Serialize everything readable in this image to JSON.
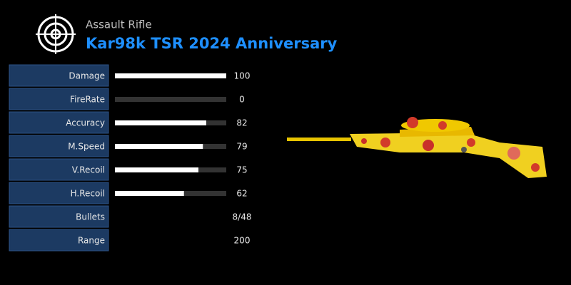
{
  "header": {
    "category": "Assault Rifle",
    "title": "Kar98k TSR 2024 Anniversary"
  },
  "scale": [
    0,
    100
  ],
  "stats": [
    {
      "label": "Damage",
      "value": 100
    },
    {
      "label": "FireRate",
      "value": 0
    },
    {
      "label": "Accuracy",
      "value": 82
    },
    {
      "label": "M.Speed",
      "value": 79
    },
    {
      "label": "V.Recoil",
      "value": 75
    },
    {
      "label": "H.Recoil",
      "value": 62
    }
  ],
  "info": [
    {
      "label": "Bullets",
      "value": "8/48"
    },
    {
      "label": "Range",
      "value": 200
    }
  ]
}
